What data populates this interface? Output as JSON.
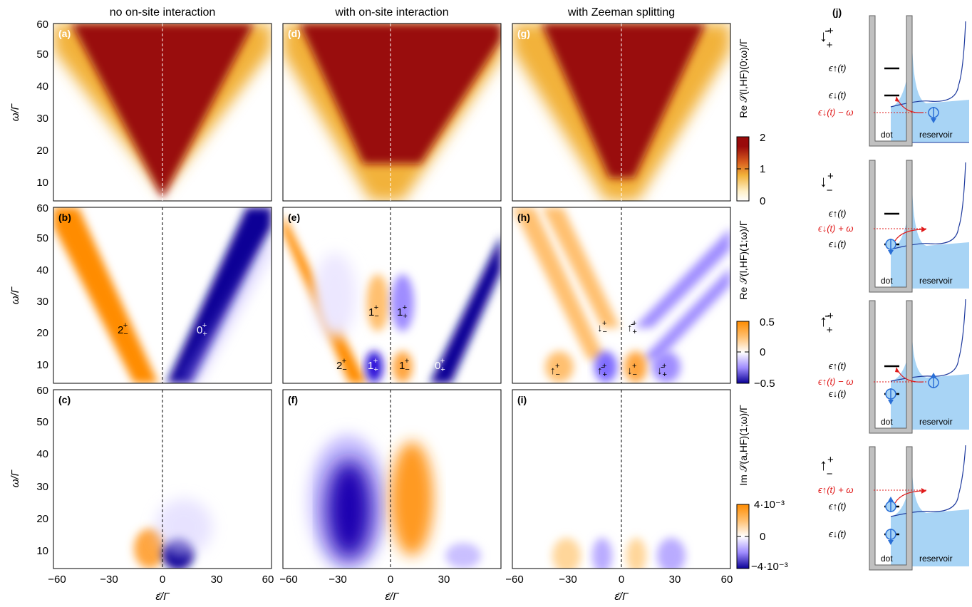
{
  "columns": {
    "titles": [
      "no on-site interaction",
      "with on-site interaction",
      "with Zeeman splitting"
    ]
  },
  "panel_labels": [
    "(a)",
    "(b)",
    "(c)",
    "(d)",
    "(e)",
    "(f)",
    "(g)",
    "(h)",
    "(i)",
    "(j)"
  ],
  "axes": {
    "ylabel": "ω/Γ",
    "xlabel": "ε̄/Γ",
    "yticks": [
      "10",
      "20",
      "30",
      "40",
      "50",
      "60"
    ],
    "xticks": {
      "col1": [
        "−60",
        "−30",
        "0",
        "30",
        "60"
      ],
      "col2": [
        "−60",
        "−30",
        "0",
        "30"
      ],
      "col3": [
        "−60",
        "−30",
        "0",
        "30",
        "60"
      ]
    }
  },
  "colorbars": [
    {
      "label": "Re 𝒮(l,HF)(0;ω)/Γ",
      "ticks": [
        "2",
        "1",
        "0"
      ],
      "colors": [
        "#990a0a",
        "#d95f1e",
        "#f2b23a",
        "#fff0c8",
        "#ffffff"
      ]
    },
    {
      "label": "Re 𝒮(l,HF)(1;ω)/Γ",
      "ticks": [
        "0.5",
        "0",
        "−0.5"
      ],
      "colors": [
        "#ff8c00",
        "#ffc070",
        "#ffffff",
        "#9f8cff",
        "#0a0096"
      ]
    },
    {
      "label": "Im 𝒮(a,HF)(1;ω)/Γ",
      "ticks": [
        "4·10⁻³",
        "0",
        "−4·10⁻³"
      ],
      "colors": [
        "#ff8c00",
        "#ffc070",
        "#ffffff",
        "#9f8cff",
        "#0a0096"
      ]
    }
  ],
  "chart_data": [
    {
      "panel": "(a)",
      "type": "heatmap",
      "title": "no on-site interaction",
      "xlabel": "",
      "ylabel": "ω/Γ",
      "xlim": [
        -60,
        60
      ],
      "ylim": [
        5,
        60
      ],
      "description": "V-shaped band: Re S(0;ω)/Γ rises from 0 outside |ε̄| ≈ ω to ≈2 inside the V, apex at ε̄=0, ω≈5"
    },
    {
      "panel": "(b)",
      "type": "heatmap",
      "xlabel": "",
      "ylabel": "ω/Γ",
      "xlim": [
        -60,
        60
      ],
      "ylim": [
        5,
        60
      ],
      "features": [
        {
          "label": "2₋⁺",
          "x": -20,
          "y": 22,
          "sign": "positive"
        },
        {
          "label": "0₊⁺",
          "x": 20,
          "y": 22,
          "sign": "negative"
        }
      ]
    },
    {
      "panel": "(c)",
      "type": "heatmap",
      "xlabel": "ε̄/Γ",
      "ylabel": "ω/Γ",
      "xlim": [
        -60,
        60
      ],
      "ylim": [
        5,
        60
      ],
      "features": [
        {
          "x": -8,
          "y": 8,
          "sign": "positive"
        },
        {
          "x": 10,
          "y": 8,
          "sign": "negative"
        }
      ]
    },
    {
      "panel": "(d)",
      "type": "heatmap",
      "title": "with on-site interaction",
      "xlabel": "",
      "ylabel": "",
      "xlim": [
        -60,
        45
      ],
      "ylim": [
        5,
        60
      ]
    },
    {
      "panel": "(e)",
      "type": "heatmap",
      "xlabel": "",
      "ylabel": "",
      "xlim": [
        -60,
        45
      ],
      "ylim": [
        5,
        60
      ],
      "features": [
        {
          "label": "1₋⁺",
          "x": -24,
          "y": 28,
          "sign": "positive"
        },
        {
          "label": "1₊⁺",
          "x": -7,
          "y": 28,
          "sign": "negative"
        },
        {
          "label": "2₋⁺",
          "x": -43,
          "y": 10,
          "sign": "positive"
        },
        {
          "label": "1₊⁺",
          "x": -26,
          "y": 10,
          "sign": "negative"
        },
        {
          "label": "1₋⁺",
          "x": -7,
          "y": 10,
          "sign": "positive"
        },
        {
          "label": "0₊⁺",
          "x": 10,
          "y": 10,
          "sign": "negative"
        }
      ]
    },
    {
      "panel": "(f)",
      "type": "heatmap",
      "xlabel": "ε̄/Γ",
      "ylabel": "",
      "xlim": [
        -60,
        45
      ],
      "ylim": [
        5,
        60
      ],
      "features": [
        {
          "x": -32,
          "y": 22,
          "sign": "negative"
        },
        {
          "x": 5,
          "y": 22,
          "sign": "positive"
        }
      ]
    },
    {
      "panel": "(g)",
      "type": "heatmap",
      "title": "with Zeeman splitting",
      "xlabel": "",
      "ylabel": "",
      "xlim": [
        -60,
        60
      ],
      "ylim": [
        5,
        60
      ]
    },
    {
      "panel": "(h)",
      "type": "heatmap",
      "xlabel": "",
      "ylabel": "",
      "xlim": [
        -60,
        60
      ],
      "ylim": [
        5,
        60
      ],
      "features": [
        {
          "label": "↓₋⁺",
          "x": -8,
          "y": 22
        },
        {
          "label": "↑̄₊⁺",
          "x": 8,
          "y": 22
        },
        {
          "label": "↑₋⁺",
          "x": -26,
          "y": 9
        },
        {
          "label": "↑̄₊⁺",
          "x": -9,
          "y": 9
        },
        {
          "label": "↓₋⁺",
          "x": 8,
          "y": 9
        },
        {
          "label": "↓̄₊⁺",
          "x": 25,
          "y": 9
        }
      ]
    },
    {
      "panel": "(i)",
      "type": "heatmap",
      "xlabel": "ε̄/Γ",
      "ylabel": "",
      "xlim": [
        -60,
        60
      ],
      "ylim": [
        5,
        60
      ],
      "features": [
        {
          "x": -28,
          "y": 8,
          "sign": "positive"
        },
        {
          "x": -10,
          "y": 8,
          "sign": "negative"
        },
        {
          "x": 8,
          "y": 8,
          "sign": "positive"
        },
        {
          "x": 25,
          "y": 8,
          "sign": "negative"
        }
      ]
    }
  ],
  "schematic": {
    "label": "(j)",
    "dot_label": "dot",
    "reservoir_label": "reservoir",
    "processes": [
      {
        "symbol_main": "↓̄",
        "symbol_sup": "+",
        "symbol_sub": "+",
        "levels": [
          "ϵ↑(t)",
          "ϵ↓(t)"
        ],
        "transfer": "ϵ↓(t) − ω"
      },
      {
        "symbol_main": "↓",
        "symbol_sup": "+",
        "symbol_sub": "−",
        "levels": [
          "ϵ↑(t)",
          "ϵ↓(t)"
        ],
        "transfer": "ϵ↓(t) + ω"
      },
      {
        "symbol_main": "↑̄",
        "symbol_sup": "+",
        "symbol_sub": "+",
        "levels": [
          "ϵ↑(t)",
          "ϵ↓(t)"
        ],
        "transfer": "ϵ↑(t) − ω"
      },
      {
        "symbol_main": "↑",
        "symbol_sup": "+",
        "symbol_sub": "−",
        "levels": [
          "ϵ↑(t)",
          "ϵ↓(t)"
        ],
        "transfer": "ϵ↑(t) + ω"
      }
    ],
    "colors": {
      "reservoir_fill": "#a8d4f5",
      "reservoir_line": "#1e3a9e",
      "transfer": "#e01b1b",
      "spin": "#2a6fd6",
      "wall": "#a0a0a0"
    }
  }
}
